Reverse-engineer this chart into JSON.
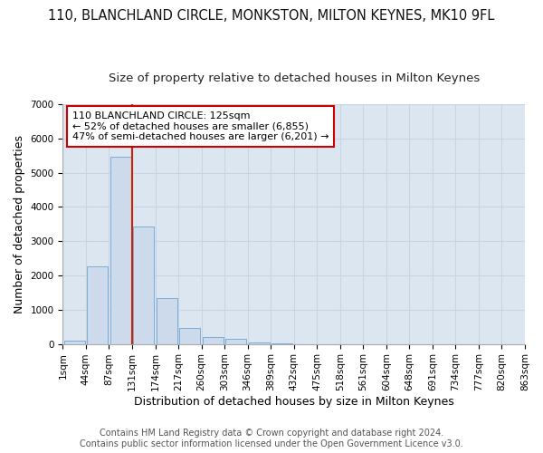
{
  "title": "110, BLANCHLAND CIRCLE, MONKSTON, MILTON KEYNES, MK10 9FL",
  "subtitle": "Size of property relative to detached houses in Milton Keynes",
  "xlabel": "Distribution of detached houses by size in Milton Keynes",
  "ylabel": "Number of detached properties",
  "footer_line1": "Contains HM Land Registry data © Crown copyright and database right 2024.",
  "footer_line2": "Contains public sector information licensed under the Open Government Licence v3.0.",
  "bar_heights": [
    100,
    2270,
    5470,
    3420,
    1340,
    460,
    190,
    140,
    55,
    10,
    0,
    0,
    0,
    0,
    0,
    0,
    0,
    0,
    0,
    0
  ],
  "bar_color": "#ccdaeb",
  "bar_edge_color": "#7aaed6",
  "tick_labels": [
    "1sqm",
    "44sqm",
    "87sqm",
    "131sqm",
    "174sqm",
    "217sqm",
    "260sqm",
    "303sqm",
    "346sqm",
    "389sqm",
    "432sqm",
    "475sqm",
    "518sqm",
    "561sqm",
    "604sqm",
    "648sqm",
    "691sqm",
    "734sqm",
    "777sqm",
    "820sqm",
    "863sqm"
  ],
  "ylim": [
    0,
    7000
  ],
  "yticks": [
    0,
    1000,
    2000,
    3000,
    4000,
    5000,
    6000,
    7000
  ],
  "grid_color": "#c8d4e3",
  "background_color": "#dce6f0",
  "property_bin_index": 2,
  "annotation_text_line1": "110 BLANCHLAND CIRCLE: 125sqm",
  "annotation_text_line2": "← 52% of detached houses are smaller (6,855)",
  "annotation_text_line3": "47% of semi-detached houses are larger (6,201) →",
  "annotation_box_facecolor": "#ffffff",
  "annotation_box_edgecolor": "#cc0000",
  "red_line_color": "#cc2200",
  "title_fontsize": 10.5,
  "subtitle_fontsize": 9.5,
  "axis_label_fontsize": 9,
  "tick_fontsize": 7.5,
  "annotation_fontsize": 8,
  "footer_fontsize": 7
}
